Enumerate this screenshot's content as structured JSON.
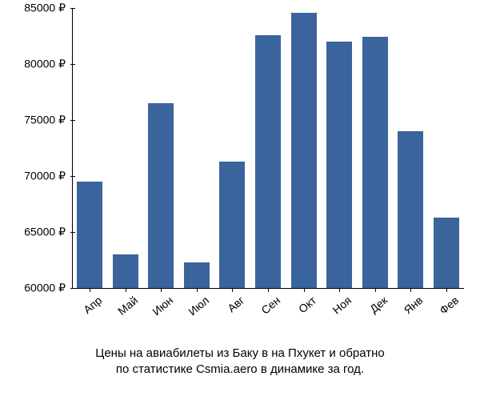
{
  "chart": {
    "type": "bar",
    "background_color": "#ffffff",
    "bar_color": "#3a649b",
    "axis_color": "#000000",
    "label_color": "#000000",
    "label_fontsize": 14,
    "caption_fontsize": 15,
    "categories": [
      "Апр",
      "Май",
      "Июн",
      "Июл",
      "Авг",
      "Сен",
      "Окт",
      "Ноя",
      "Дек",
      "Янв",
      "Фев"
    ],
    "values": [
      69500,
      63000,
      76500,
      62300,
      71300,
      82600,
      84600,
      82000,
      82400,
      74000,
      66300
    ],
    "ymin": 60000,
    "ymax": 85000,
    "ytick_step": 5000,
    "currency_suffix": " ₽",
    "bar_width_ratio": 0.72,
    "x_label_rotation_deg": -40,
    "caption_line1": "Цены на авиабилеты из Баку в на Пхукет и обратно",
    "caption_line2": "по статистике Csmia.aero в динамике за год."
  }
}
